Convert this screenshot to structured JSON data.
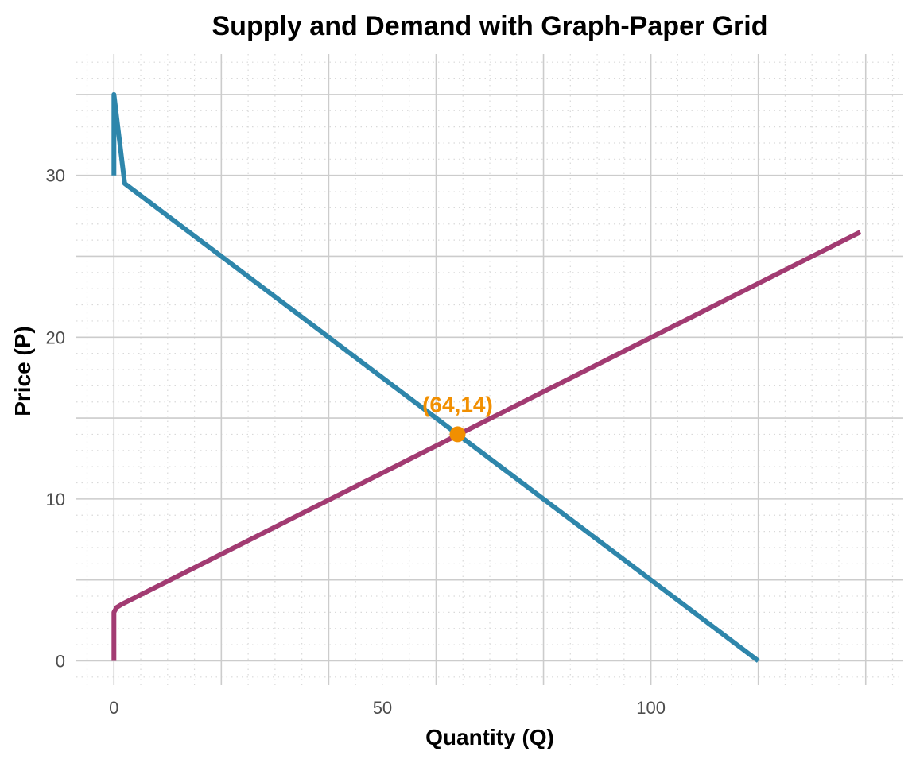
{
  "chart_data": {
    "type": "line",
    "title": "Supply and Demand with Graph-Paper Grid",
    "xlabel": "Quantity (Q)",
    "ylabel": "Price (P)",
    "xlim": [
      -7,
      147
    ],
    "ylim": [
      -1.5,
      37.5
    ],
    "x_ticks": [
      0,
      50,
      100
    ],
    "y_ticks": [
      0,
      10,
      20,
      30
    ],
    "x_major_grid": [
      0,
      20,
      40,
      60,
      80,
      100,
      120,
      140
    ],
    "y_major_grid": [
      0,
      5,
      10,
      15,
      20,
      25,
      30,
      35
    ],
    "minor_grid_step": 5,
    "grid": true,
    "series": [
      {
        "key": "demand",
        "color": "#2e86ab",
        "x": [
          0,
          0,
          2,
          120
        ],
        "y": [
          30,
          35,
          29.5,
          0
        ]
      },
      {
        "key": "supply",
        "color": "#a23b72",
        "x": [
          0,
          0,
          0.5,
          1.5,
          139
        ],
        "y": [
          0,
          3,
          3.3,
          3.5,
          26.5
        ]
      }
    ],
    "annotations": [
      {
        "x": 64,
        "y": 14,
        "label": "(64,14)",
        "color": "#f18f01"
      }
    ]
  }
}
